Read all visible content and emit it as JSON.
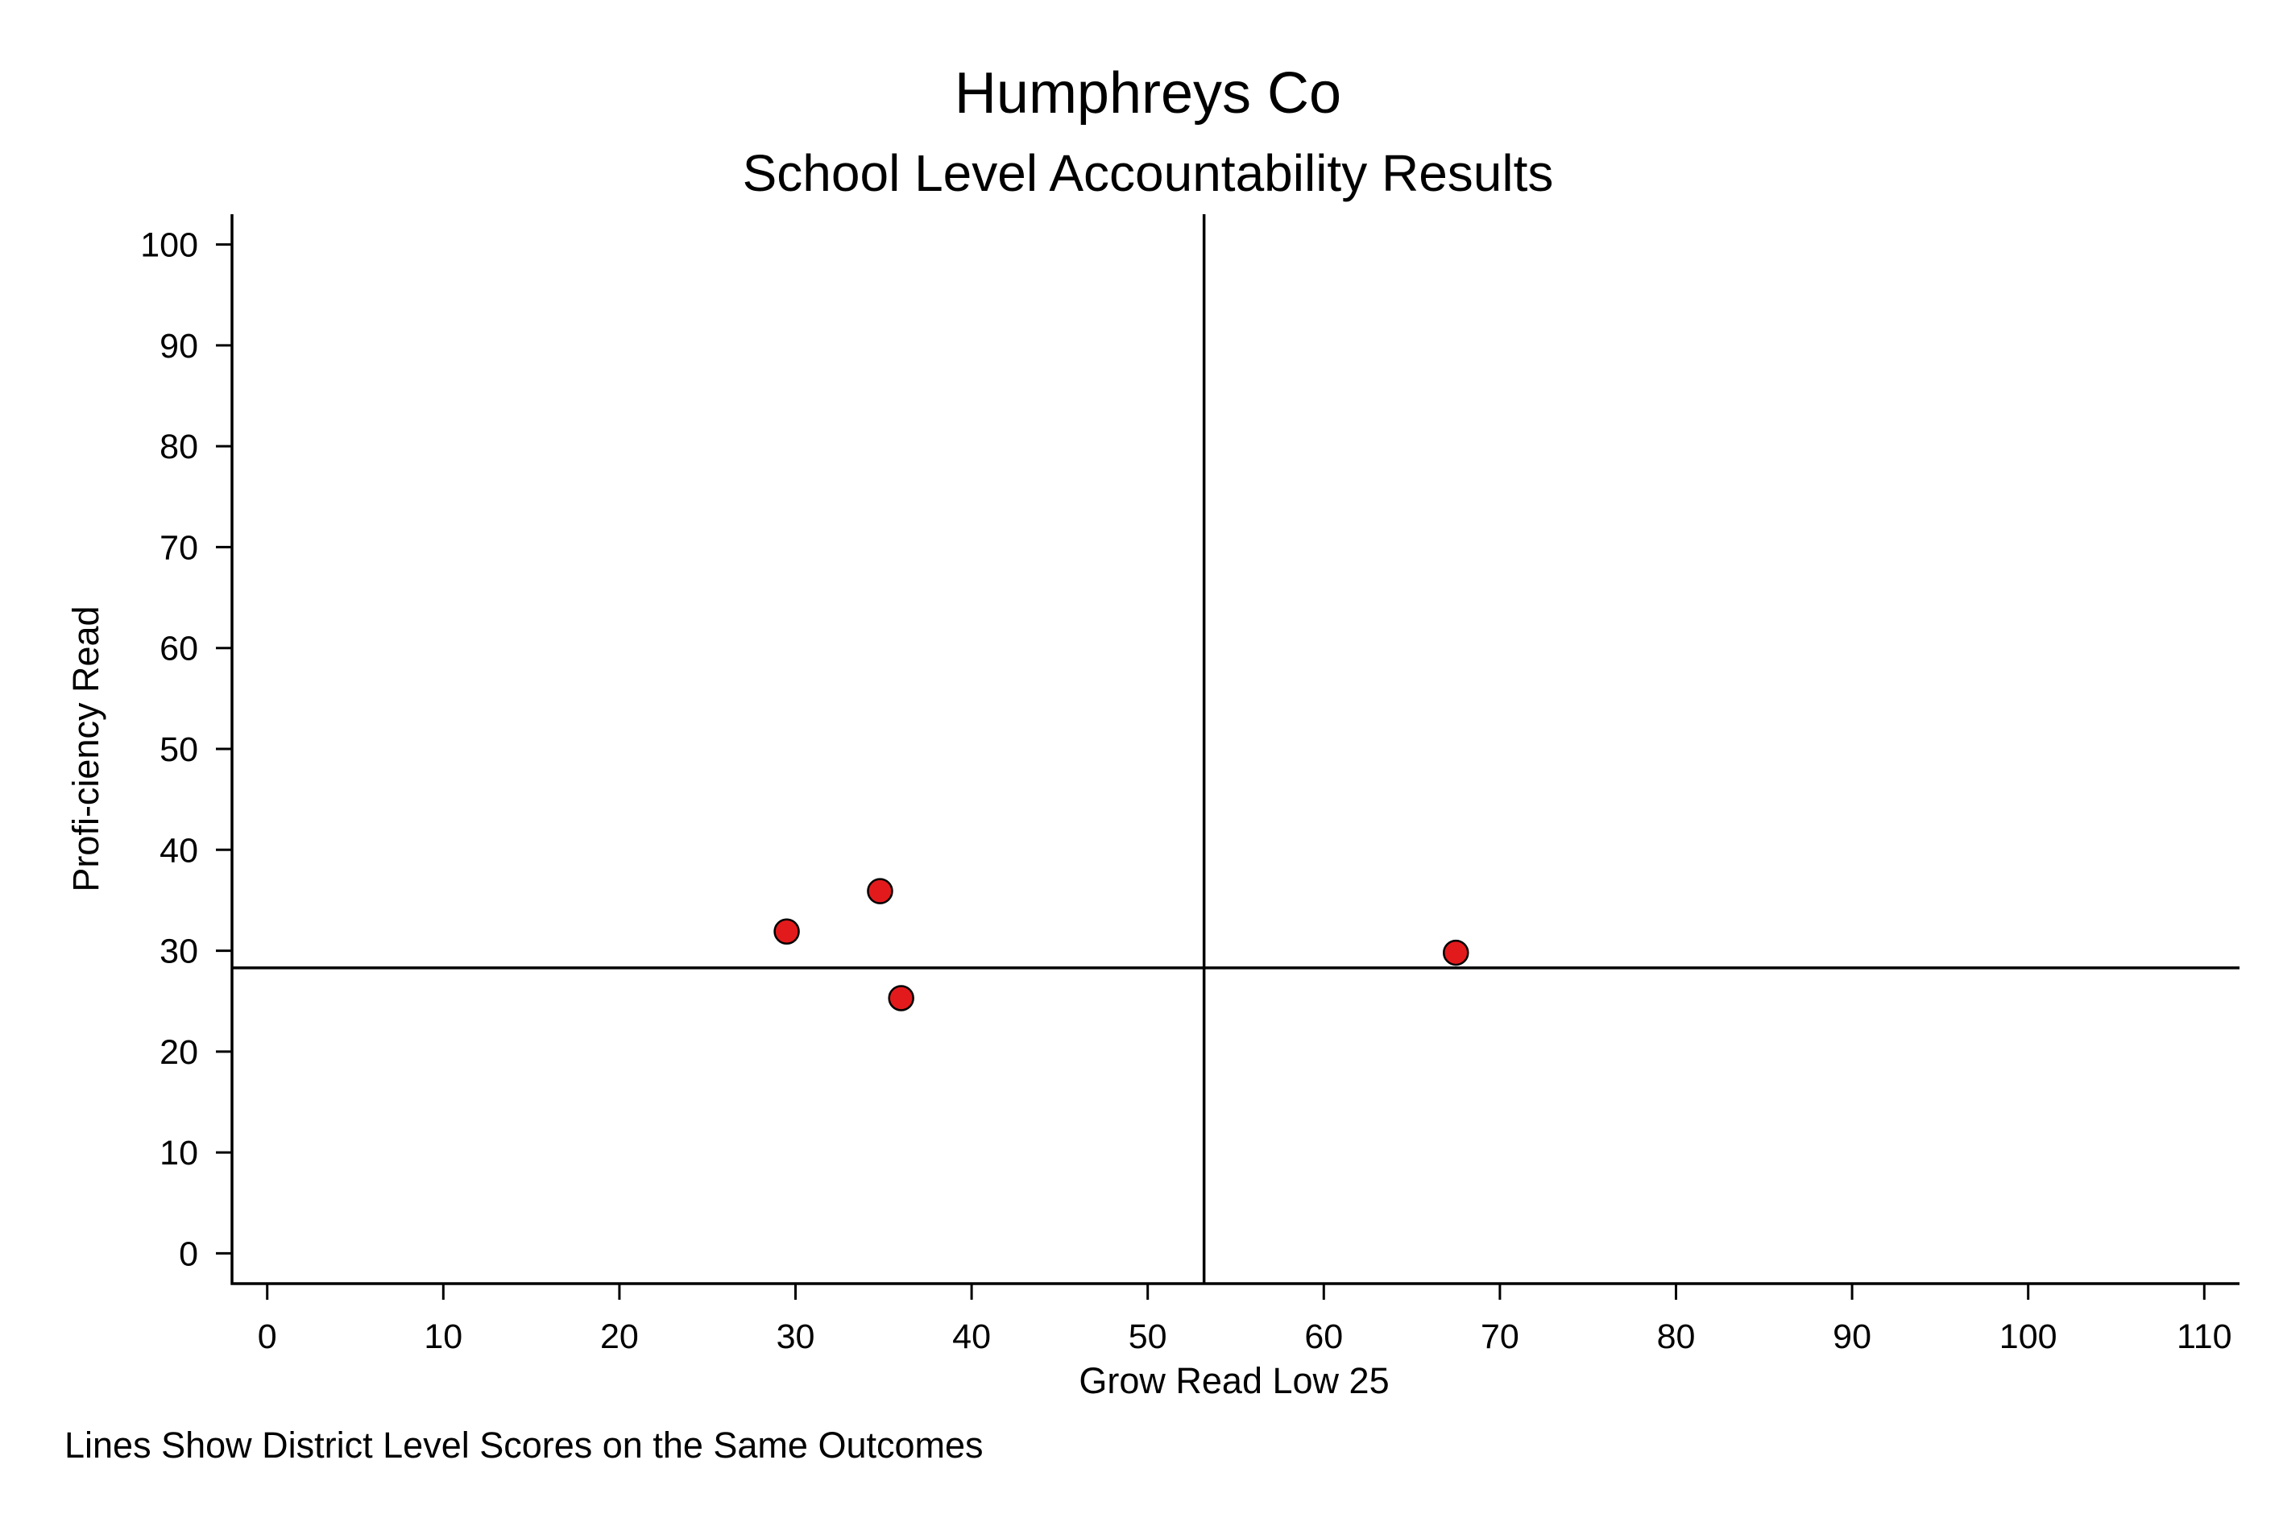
{
  "chart_data": {
    "type": "scatter",
    "title": "Humphreys Co",
    "subtitle": "School Level Accountability Results",
    "xlabel": "Grow Read Low 25",
    "ylabel": "Profi-ciency Read",
    "note": "Lines Show District Level Scores on the Same Outcomes",
    "xlim": [
      -2,
      112
    ],
    "ylim": [
      -3,
      103
    ],
    "xticks": [
      "0",
      "10",
      "20",
      "30",
      "40",
      "50",
      "60",
      "70",
      "80",
      "90",
      "100",
      "110"
    ],
    "yticks": [
      "0",
      "10",
      "20",
      "30",
      "40",
      "50",
      "60",
      "70",
      "80",
      "90",
      "100"
    ],
    "grid": false,
    "marker_color": "#e31a1c",
    "reference_lines": {
      "x": 53.2,
      "y": 28.3
    },
    "points": [
      {
        "x": 29.5,
        "y": 31.9
      },
      {
        "x": 34.8,
        "y": 35.9
      },
      {
        "x": 36.0,
        "y": 25.3
      },
      {
        "x": 67.5,
        "y": 29.8
      }
    ]
  }
}
